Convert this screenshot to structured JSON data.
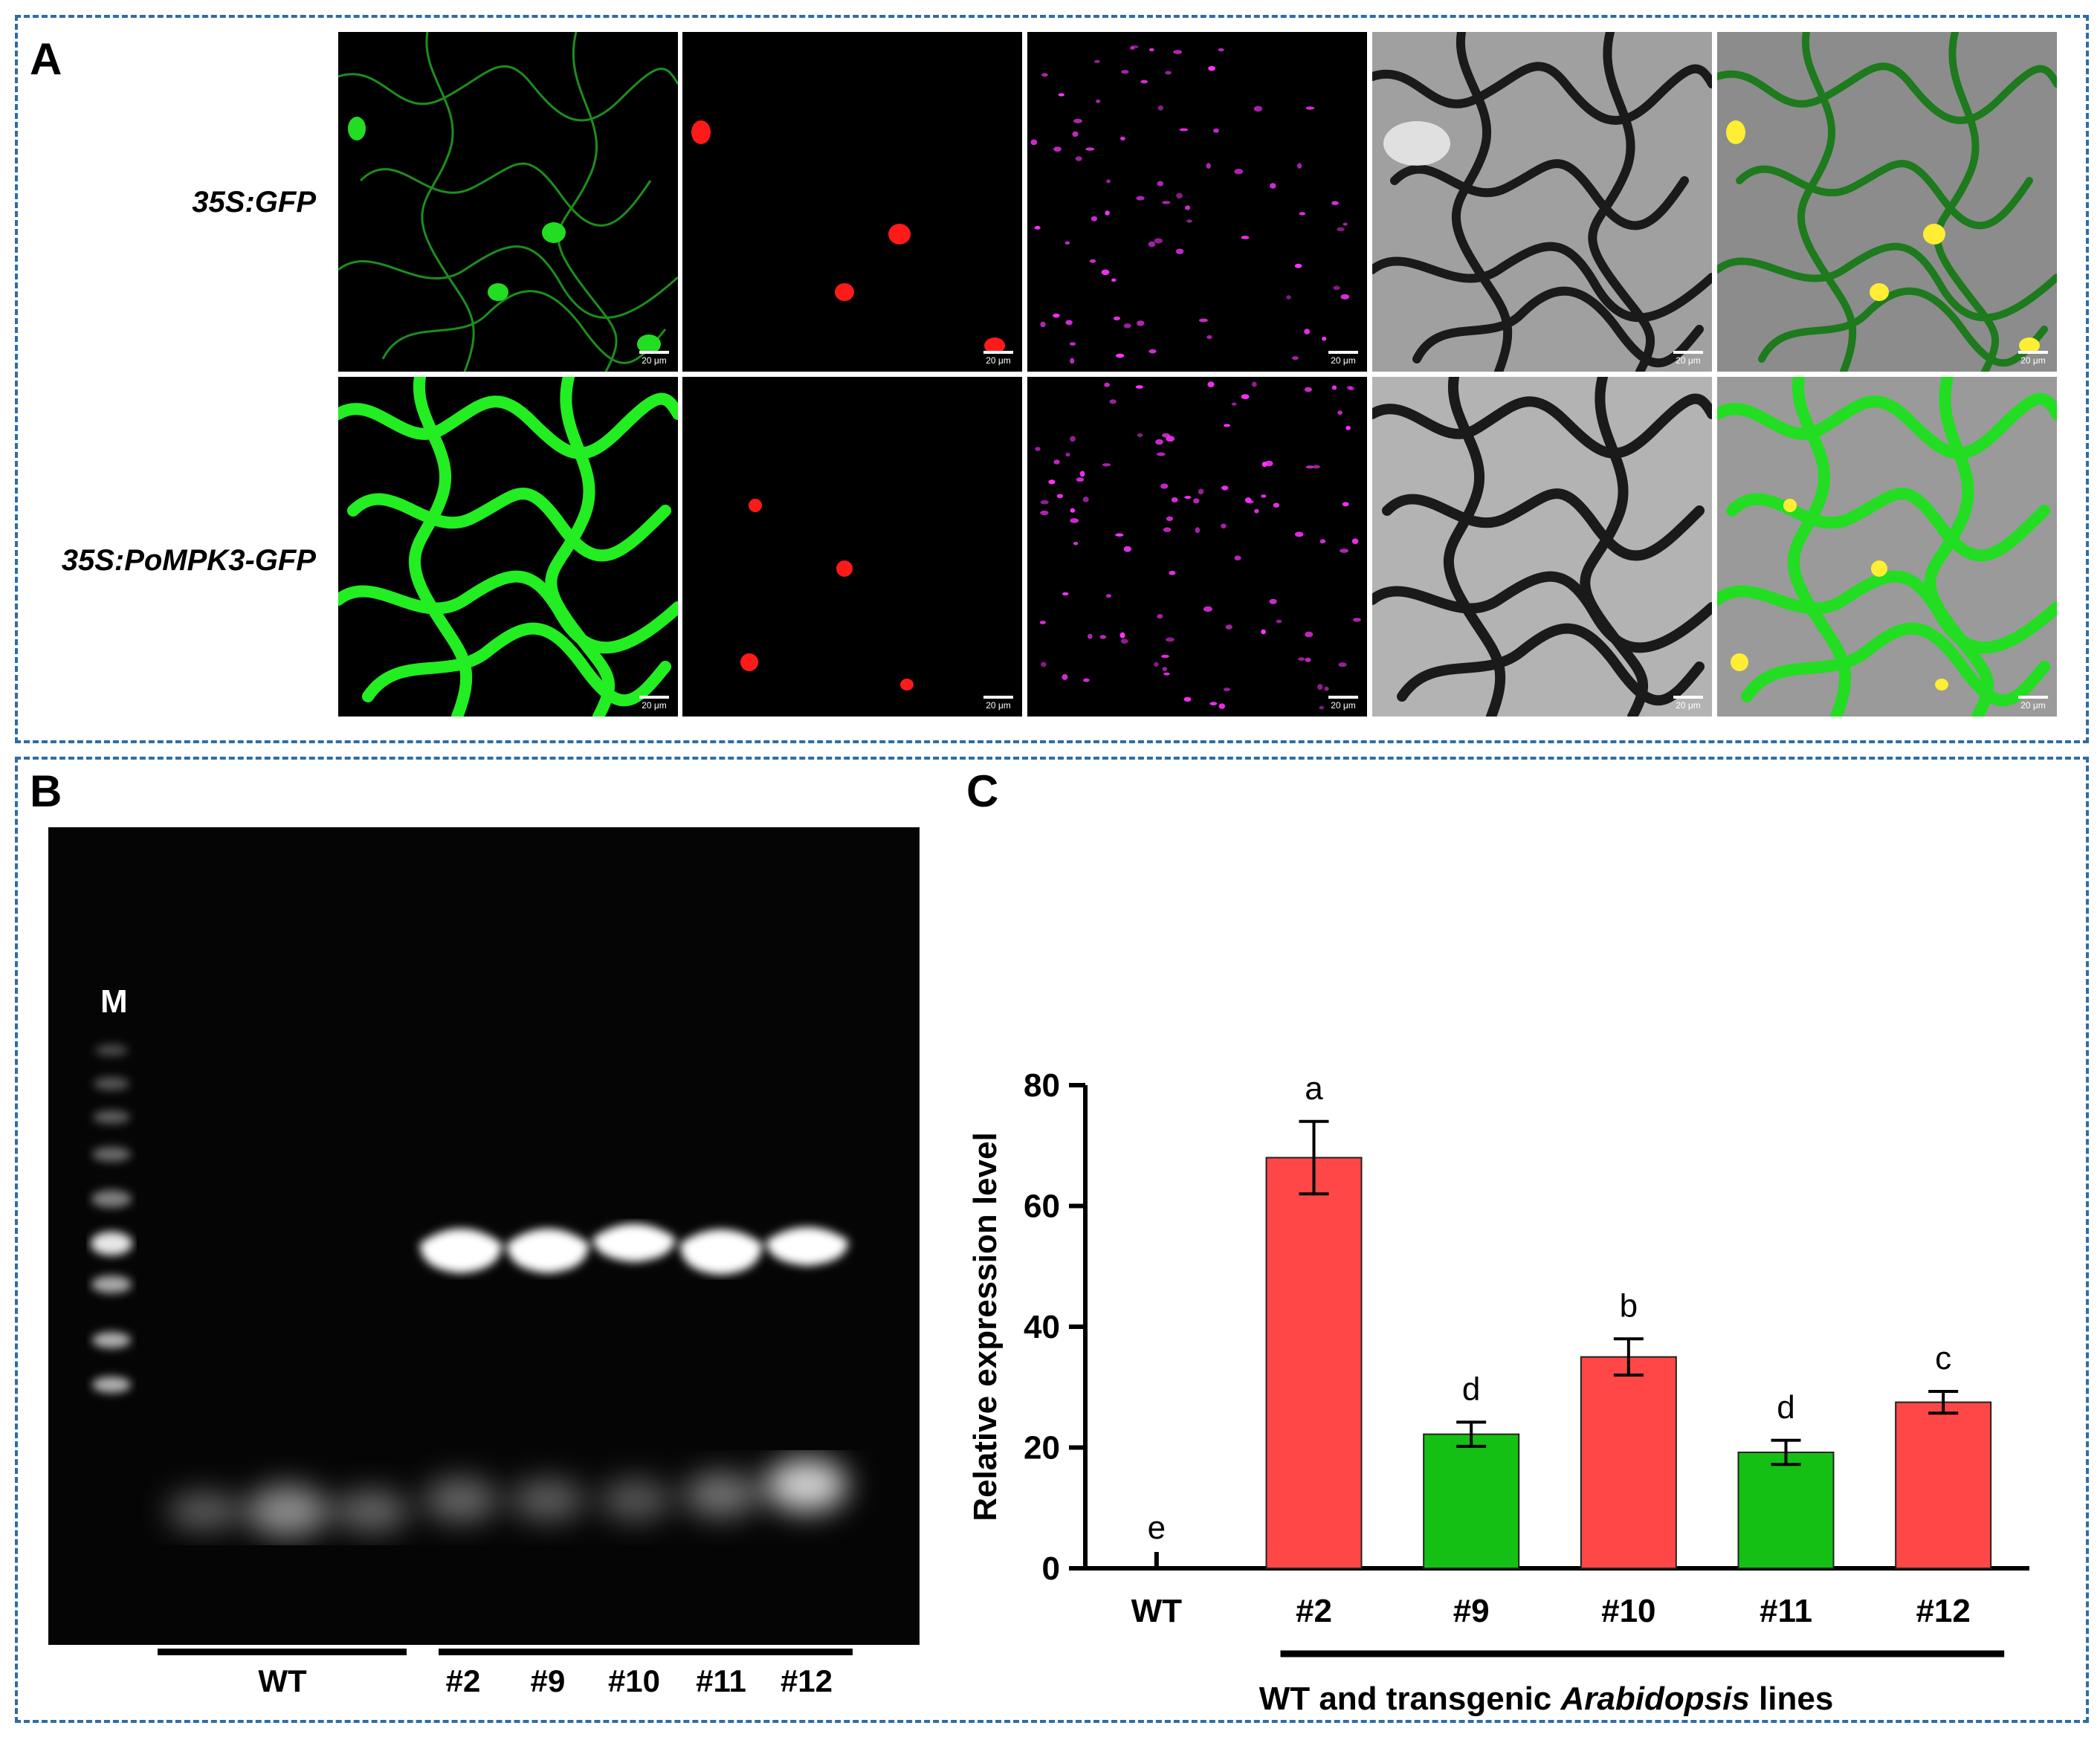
{
  "panel_a": {
    "letter": "A",
    "rows": [
      {
        "label": "35S:GFP"
      },
      {
        "label": "35S:PoMPK3-GFP"
      }
    ],
    "scale_bar": "20 μm"
  },
  "panel_b": {
    "letter": "B",
    "marker": "M",
    "lanes": [
      "WT",
      "#2",
      "#9",
      "#10",
      "#11",
      "#12"
    ]
  },
  "panel_c": {
    "letter": "C"
  },
  "colors": {
    "frame": "#2e6da4",
    "red_bar": "#ff4747",
    "green_bar": "#15c015",
    "gfp": "#22dd22",
    "nucleus_red": "#ff1a1a",
    "chloroplast": "#ff33ff",
    "merge_yellow": "#ffee33"
  },
  "chart_data": {
    "type": "bar",
    "categories": [
      "WT",
      "#2",
      "#9",
      "#10",
      "#11",
      "#12"
    ],
    "values": [
      0,
      68,
      22.2,
      35,
      19.2,
      27.5
    ],
    "errors": [
      0,
      6,
      2,
      3,
      2,
      1.8
    ],
    "letters": [
      "e",
      "a",
      "d",
      "b",
      "d",
      "c"
    ],
    "bar_colors": [
      "#ffffff",
      "#ff4747",
      "#15c015",
      "#ff4747",
      "#15c015",
      "#ff4747"
    ],
    "ylabel": "Relative expression level",
    "xlabel_prefix": "WT and transgenic ",
    "xlabel_italic": "Arabidopsis",
    "xlabel_suffix": " lines",
    "ylim": [
      0,
      80
    ],
    "yticks": [
      0,
      20,
      40,
      60,
      80
    ],
    "grid": false
  }
}
